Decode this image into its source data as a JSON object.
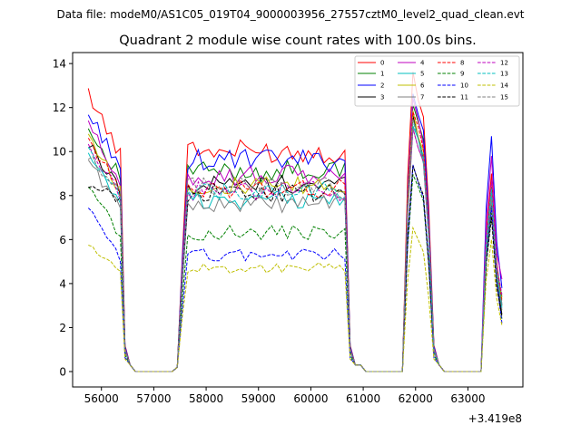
{
  "suptitle": "Data file: modeM0/AS1C05_019T04_9000003956_27557cztM0_level2_quad_clean.evt",
  "chart_data": {
    "type": "line",
    "title": "Quadrant 2 module wise count rates with 100.0s bins.",
    "xlabel": "",
    "ylabel": "",
    "x_offset_label": "+3.419e8",
    "xlim": [
      55450,
      64050
    ],
    "ylim": [
      -0.7,
      14.5
    ],
    "xticks": [
      56000,
      57000,
      58000,
      59000,
      60000,
      61000,
      62000,
      63000
    ],
    "xtick_labels": [
      "56000",
      "57000",
      "58000",
      "59000",
      "60000",
      "61000",
      "62000",
      "63000"
    ],
    "yticks": [
      0,
      2,
      4,
      6,
      8,
      10,
      12,
      14
    ],
    "ytick_labels": [
      "0",
      "2",
      "4",
      "6",
      "8",
      "10",
      "12",
      "14"
    ],
    "grid": false,
    "legend_position": "top-right",
    "legend_columns": 4,
    "time_segments": [
      {
        "start": 55750,
        "end": 56450,
        "kind": "on",
        "n": 8
      },
      {
        "start": 56450,
        "end": 56650,
        "kind": "drop",
        "n": 2
      },
      {
        "start": 56650,
        "end": 57450,
        "kind": "off",
        "n": 8
      },
      {
        "start": 57450,
        "end": 57650,
        "kind": "rise",
        "n": 2
      },
      {
        "start": 57650,
        "end": 60750,
        "kind": "on",
        "n": 31
      },
      {
        "start": 60750,
        "end": 61050,
        "kind": "drop",
        "n": 3
      },
      {
        "start": 61050,
        "end": 61850,
        "kind": "off",
        "n": 8
      },
      {
        "start": 61850,
        "end": 62350,
        "kind": "spike",
        "n": 5
      },
      {
        "start": 62350,
        "end": 62550,
        "kind": "drop",
        "n": 2
      },
      {
        "start": 62550,
        "end": 63350,
        "kind": "off",
        "n": 8
      },
      {
        "start": 63350,
        "end": 63650,
        "kind": "spike2",
        "n": 3
      }
    ],
    "series": [
      {
        "name": "0",
        "color": "#ff0000",
        "dash": "solid",
        "start_level": 12.7,
        "base": 10.0,
        "spike_peak": 13.6,
        "spike2_peak": 9.0,
        "end_level": 3.0
      },
      {
        "name": "1",
        "color": "#008000",
        "dash": "solid",
        "start_level": 11.0,
        "base": 9.1,
        "spike_peak": 12.2,
        "spike2_peak": 8.4,
        "end_level": 3.4
      },
      {
        "name": "2",
        "color": "#0000ff",
        "dash": "solid",
        "start_level": 11.7,
        "base": 9.6,
        "spike_peak": 12.7,
        "spike2_peak": 10.7,
        "end_level": 3.8
      },
      {
        "name": "3",
        "color": "#000000",
        "dash": "solid",
        "start_level": 10.3,
        "base": 8.5,
        "spike_peak": 11.6,
        "spike2_peak": 7.6,
        "end_level": 2.6
      },
      {
        "name": "4",
        "color": "#bf00bf",
        "dash": "solid",
        "start_level": 11.2,
        "base": 8.9,
        "spike_peak": 12.3,
        "spike2_peak": 9.8,
        "end_level": 4.2
      },
      {
        "name": "5",
        "color": "#00bfbf",
        "dash": "solid",
        "start_level": 9.8,
        "base": 7.8,
        "spike_peak": 11.3,
        "spike2_peak": 7.9,
        "end_level": 2.9
      },
      {
        "name": "6",
        "color": "#bfbf00",
        "dash": "solid",
        "start_level": 10.8,
        "base": 8.4,
        "spike_peak": 11.8,
        "spike2_peak": 8.2,
        "end_level": 3.3
      },
      {
        "name": "7",
        "color": "#808080",
        "dash": "solid",
        "start_level": 9.6,
        "base": 7.6,
        "spike_peak": 11.0,
        "spike2_peak": 8.1,
        "end_level": 3.1
      },
      {
        "name": "8",
        "color": "#ff0000",
        "dash": "dashed",
        "start_level": 10.6,
        "base": 8.3,
        "spike_peak": 11.9,
        "spike2_peak": 8.6,
        "end_level": 3.2
      },
      {
        "name": "9",
        "color": "#008000",
        "dash": "dashed",
        "start_level": 8.6,
        "base": 6.3,
        "spike_peak": 9.0,
        "spike2_peak": 7.2,
        "end_level": 2.4
      },
      {
        "name": "10",
        "color": "#0000ff",
        "dash": "dashed",
        "start_level": 7.4,
        "base": 5.3,
        "spike_peak": 9.2,
        "spike2_peak": 7.5,
        "end_level": 2.2
      },
      {
        "name": "11",
        "color": "#000000",
        "dash": "dashed",
        "start_level": 8.3,
        "base": 8.1,
        "spike_peak": 9.3,
        "spike2_peak": 7.0,
        "end_level": 2.5
      },
      {
        "name": "12",
        "color": "#bf00bf",
        "dash": "dashed",
        "start_level": 10.4,
        "base": 8.2,
        "spike_peak": 11.2,
        "spike2_peak": 8.7,
        "end_level": 3.5
      },
      {
        "name": "13",
        "color": "#00bfbf",
        "dash": "dashed",
        "start_level": 10.0,
        "base": 8.2,
        "spike_peak": 11.4,
        "spike2_peak": 8.3,
        "end_level": 3.0
      },
      {
        "name": "14",
        "color": "#bfbf00",
        "dash": "dashed",
        "start_level": 5.8,
        "base": 4.7,
        "spike_peak": 6.4,
        "spike2_peak": 6.0,
        "end_level": 2.1
      },
      {
        "name": "15",
        "color": "#808080",
        "dash": "dashed",
        "start_level": 9.7,
        "base": 8.4,
        "spike_peak": 11.5,
        "spike2_peak": 7.8,
        "end_level": 2.8
      }
    ]
  }
}
